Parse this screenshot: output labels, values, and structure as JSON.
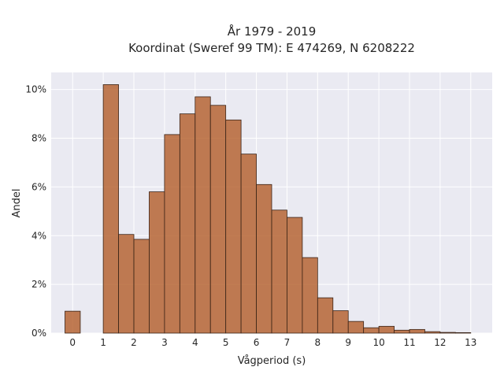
{
  "chart_data": {
    "type": "bar",
    "title_lines": [
      "År 1979 - 2019",
      "Koordinat (Sweref 99 TM): E 474269, N 6208222"
    ],
    "xlabel": "Vågperiod (s)",
    "ylabel": "Andel",
    "xlim": [
      -0.7,
      13.7
    ],
    "ylim": [
      0,
      10.7
    ],
    "x_ticks": [
      0,
      1,
      2,
      3,
      4,
      5,
      6,
      7,
      8,
      9,
      10,
      11,
      12,
      13
    ],
    "y_ticks": [
      {
        "value": 0,
        "label": "0%"
      },
      {
        "value": 2,
        "label": "2%"
      },
      {
        "value": 4,
        "label": "4%"
      },
      {
        "value": 6,
        "label": "6%"
      },
      {
        "value": 8,
        "label": "8%"
      },
      {
        "value": 10,
        "label": "10%"
      }
    ],
    "bin_width": 0.5,
    "bar_color": "#b5602d",
    "bins": [
      {
        "x0": -0.25,
        "value": 0.9
      },
      {
        "x0": 0.25,
        "value": 0.0
      },
      {
        "x0": 0.75,
        "value": 0.0
      },
      {
        "x0": 1.0,
        "value": 10.2
      },
      {
        "x0": 1.5,
        "value": 4.05
      },
      {
        "x0": 2.0,
        "value": 3.85
      },
      {
        "x0": 2.5,
        "value": 5.8
      },
      {
        "x0": 3.0,
        "value": 8.15
      },
      {
        "x0": 3.5,
        "value": 9.0
      },
      {
        "x0": 4.0,
        "value": 9.7
      },
      {
        "x0": 4.5,
        "value": 9.35
      },
      {
        "x0": 5.0,
        "value": 8.75
      },
      {
        "x0": 5.5,
        "value": 7.35
      },
      {
        "x0": 6.0,
        "value": 6.1
      },
      {
        "x0": 6.5,
        "value": 5.05
      },
      {
        "x0": 7.0,
        "value": 4.75
      },
      {
        "x0": 7.5,
        "value": 3.1
      },
      {
        "x0": 8.0,
        "value": 1.45
      },
      {
        "x0": 8.5,
        "value": 0.92
      },
      {
        "x0": 9.0,
        "value": 0.48
      },
      {
        "x0": 9.5,
        "value": 0.22
      },
      {
        "x0": 10.0,
        "value": 0.28
      },
      {
        "x0": 10.5,
        "value": 0.12
      },
      {
        "x0": 11.0,
        "value": 0.15
      },
      {
        "x0": 11.5,
        "value": 0.06
      },
      {
        "x0": 12.0,
        "value": 0.03
      },
      {
        "x0": 12.5,
        "value": 0.02
      }
    ],
    "grid": true,
    "legend": false
  }
}
